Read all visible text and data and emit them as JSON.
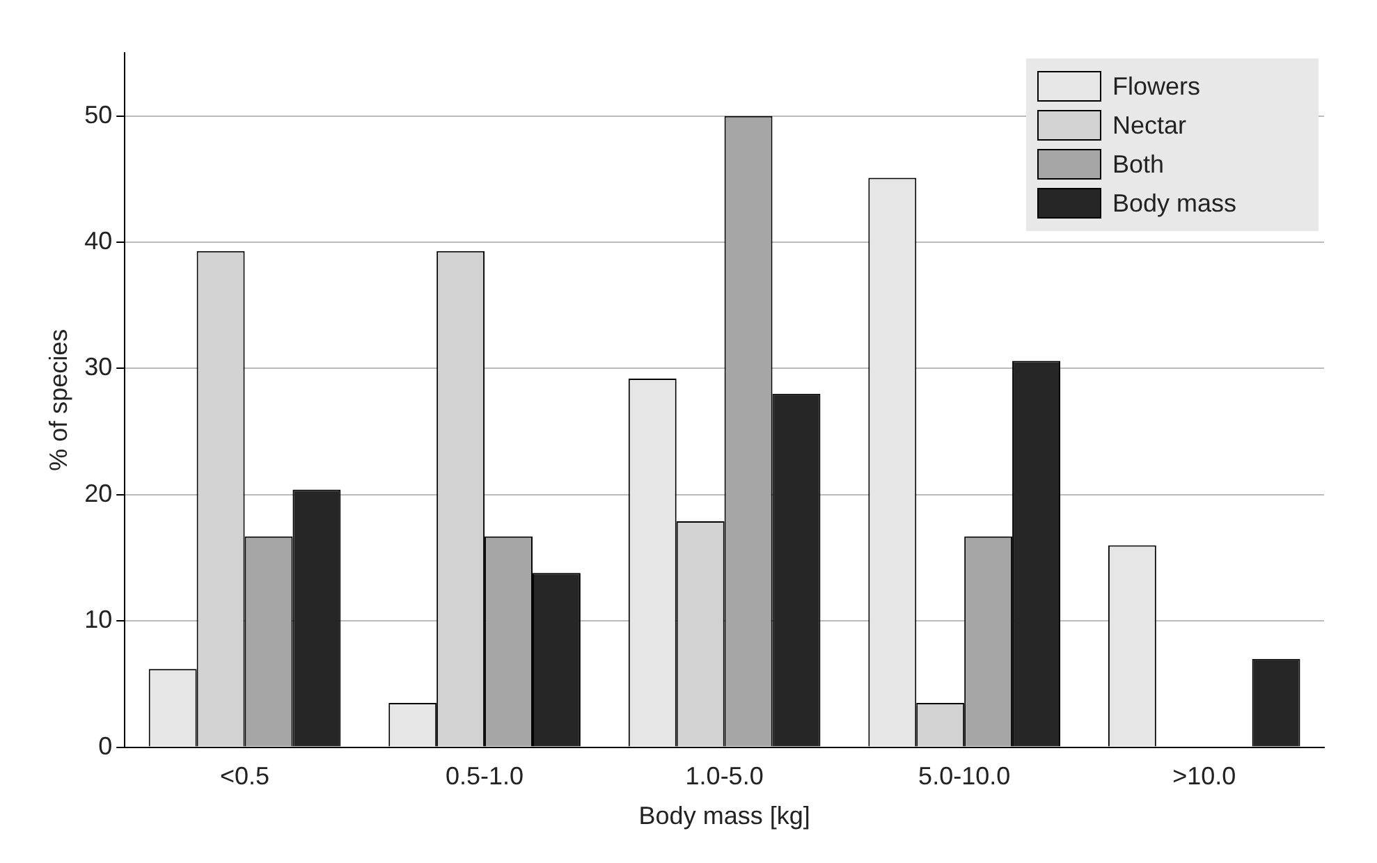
{
  "chart_data": {
    "type": "bar",
    "xlabel": "Body mass [kg]",
    "ylabel": "% of species",
    "categories": [
      "<0.5",
      "0.5-1.0",
      "1.0-5.0",
      "5.0-10.0",
      ">10.0"
    ],
    "series": [
      {
        "name": "Flowers",
        "color": "#e6e6e6",
        "values": [
          6.2,
          3.5,
          29.2,
          45.1,
          16.0
        ]
      },
      {
        "name": "Nectar",
        "color": "#d2d2d2",
        "values": [
          39.3,
          39.3,
          17.9,
          3.5,
          0
        ]
      },
      {
        "name": "Both",
        "color": "#a6a6a6",
        "values": [
          16.7,
          16.7,
          50.0,
          16.7,
          0
        ]
      },
      {
        "name": "Body mass",
        "color": "#262626",
        "values": [
          20.4,
          13.8,
          28.0,
          30.6,
          7.0
        ]
      }
    ],
    "ylim": [
      0,
      55
    ],
    "yticks": [
      0,
      10,
      20,
      30,
      40,
      50
    ],
    "grid": "y",
    "legend": "top right"
  }
}
